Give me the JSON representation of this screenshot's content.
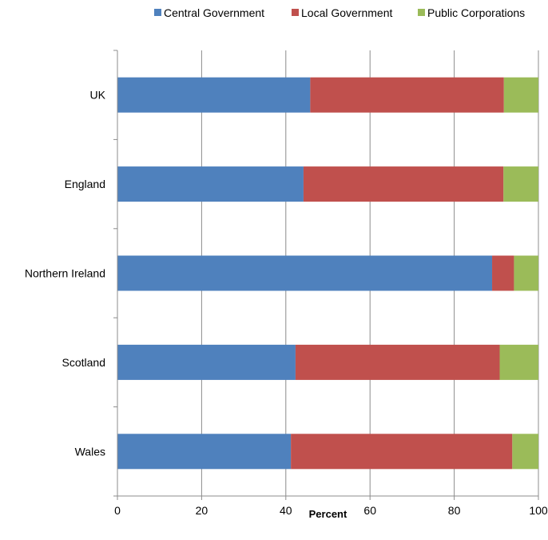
{
  "chart_data": {
    "type": "bar",
    "orientation": "horizontal",
    "stacked": true,
    "categories": [
      "UK",
      "England",
      "Northern Ireland",
      "Scotland",
      "Wales"
    ],
    "series": [
      {
        "name": "Central Government",
        "color": "#4f81bd",
        "values": [
          45.8,
          44.2,
          89.0,
          42.3,
          41.2
        ]
      },
      {
        "name": "Local Government",
        "color": "#c0504d",
        "values": [
          46.0,
          47.5,
          5.2,
          48.5,
          52.6
        ]
      },
      {
        "name": "Public Corporations",
        "color": "#9bbb59",
        "values": [
          8.2,
          8.3,
          5.8,
          9.2,
          6.2
        ]
      }
    ],
    "title": "",
    "xlabel": "Percent",
    "ylabel": "",
    "xlim": [
      0,
      100
    ],
    "xticks": [
      "0",
      "20",
      "40",
      "60",
      "80",
      "100"
    ],
    "grid": "vertical",
    "legend": "top"
  }
}
